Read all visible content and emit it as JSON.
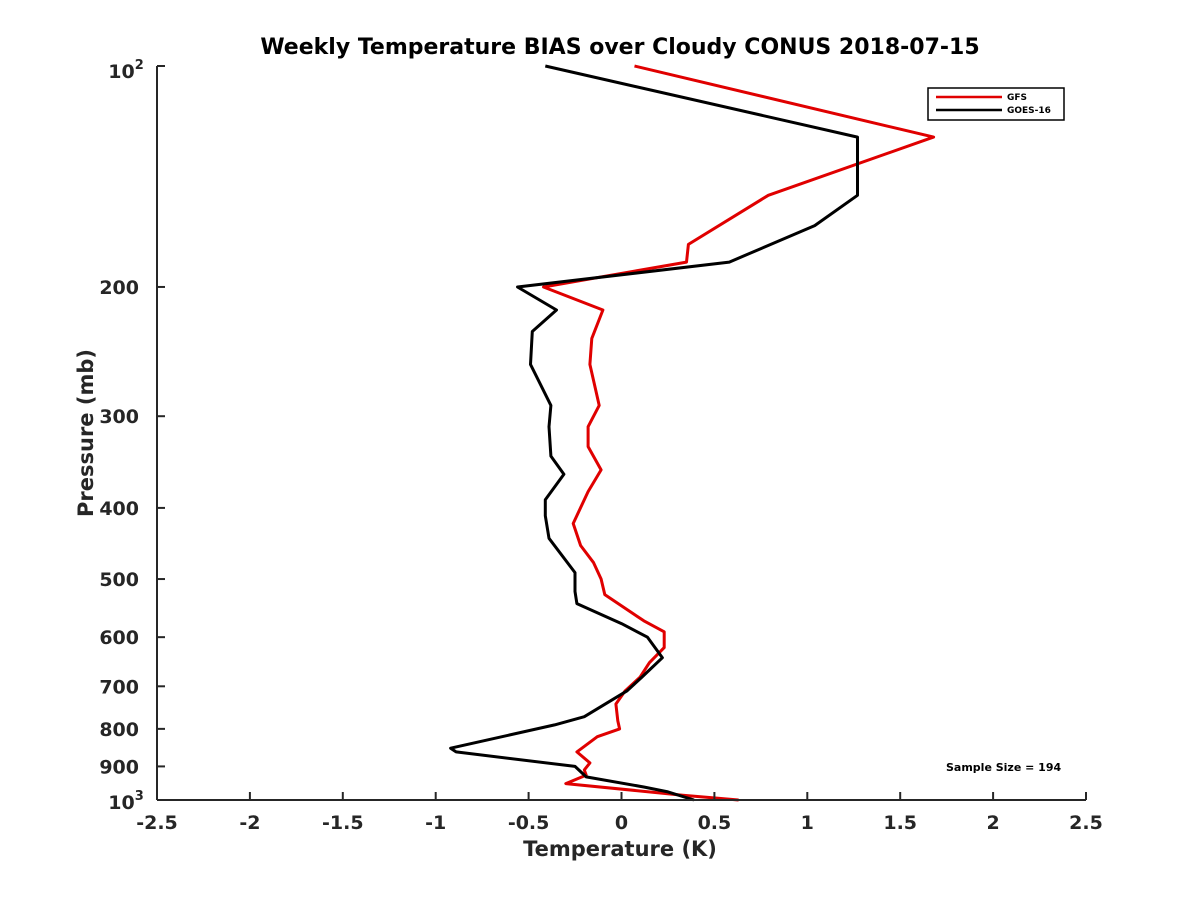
{
  "chart_data": {
    "type": "line",
    "title": "Weekly Temperature BIAS over Cloudy CONUS 2018-07-15",
    "xlabel": "Temperature (K)",
    "ylabel": "Pressure (mb)",
    "xlim": [
      -2.5,
      2.5
    ],
    "ylim": [
      100,
      1000
    ],
    "y_scale": "log",
    "y_reversed": true,
    "x_ticks": [
      -2.5,
      -2,
      -1.5,
      -1,
      -0.5,
      0,
      0.5,
      1,
      1.5,
      2,
      2.5
    ],
    "x_tick_labels": [
      "-2.5",
      "-2",
      "-1.5",
      "-1",
      "-0.5",
      "0",
      "0.5",
      "1",
      "1.5",
      "2",
      "2.5"
    ],
    "y_ticks": [
      200,
      300,
      400,
      500,
      600,
      700,
      800,
      900
    ],
    "y_tick_labels": [
      "200",
      "300",
      "400",
      "500",
      "600",
      "700",
      "800",
      "900"
    ],
    "y_top_label": {
      "base": "10",
      "exp": "2"
    },
    "y_bottom_label": {
      "base": "10",
      "exp": "3"
    },
    "legend_position": "top-right",
    "series": [
      {
        "name": "GFS",
        "color": "#e00000",
        "points": [
          [
            0.07,
            100
          ],
          [
            1.68,
            125
          ],
          [
            0.79,
            150
          ],
          [
            0.36,
            175
          ],
          [
            0.35,
            185
          ],
          [
            -0.42,
            200
          ],
          [
            -0.1,
            215
          ],
          [
            -0.16,
            235
          ],
          [
            -0.17,
            255
          ],
          [
            -0.12,
            290
          ],
          [
            -0.18,
            310
          ],
          [
            -0.18,
            330
          ],
          [
            -0.11,
            355
          ],
          [
            -0.18,
            380
          ],
          [
            -0.26,
            420
          ],
          [
            -0.22,
            450
          ],
          [
            -0.15,
            475
          ],
          [
            -0.11,
            500
          ],
          [
            -0.09,
            525
          ],
          [
            0.12,
            570
          ],
          [
            0.23,
            590
          ],
          [
            0.23,
            620
          ],
          [
            0.15,
            650
          ],
          [
            0.1,
            680
          ],
          [
            0.02,
            710
          ],
          [
            -0.03,
            740
          ],
          [
            -0.02,
            780
          ],
          [
            -0.01,
            800
          ],
          [
            -0.13,
            820
          ],
          [
            -0.24,
            860
          ],
          [
            -0.17,
            890
          ],
          [
            -0.2,
            910
          ],
          [
            -0.19,
            925
          ],
          [
            -0.3,
            950
          ],
          [
            0.33,
            985
          ],
          [
            0.63,
            1000
          ]
        ]
      },
      {
        "name": "GOES-16",
        "color": "#000000",
        "points": [
          [
            -0.41,
            100
          ],
          [
            1.27,
            125
          ],
          [
            1.27,
            150
          ],
          [
            1.04,
            165
          ],
          [
            0.58,
            185
          ],
          [
            -0.56,
            200
          ],
          [
            -0.35,
            215
          ],
          [
            -0.48,
            230
          ],
          [
            -0.49,
            255
          ],
          [
            -0.38,
            290
          ],
          [
            -0.39,
            310
          ],
          [
            -0.38,
            340
          ],
          [
            -0.31,
            360
          ],
          [
            -0.41,
            390
          ],
          [
            -0.41,
            410
          ],
          [
            -0.39,
            440
          ],
          [
            -0.25,
            490
          ],
          [
            -0.25,
            520
          ],
          [
            -0.24,
            540
          ],
          [
            0.0,
            575
          ],
          [
            0.14,
            600
          ],
          [
            0.22,
            640
          ],
          [
            0.11,
            680
          ],
          [
            0.03,
            710
          ],
          [
            -0.2,
            770
          ],
          [
            -0.36,
            790
          ],
          [
            -0.92,
            850
          ],
          [
            -0.89,
            860
          ],
          [
            -0.25,
            900
          ],
          [
            -0.19,
            930
          ],
          [
            0.12,
            960
          ],
          [
            0.25,
            975
          ],
          [
            0.39,
            1000
          ]
        ]
      }
    ],
    "annotations": [
      "Sample Size = 194"
    ]
  }
}
